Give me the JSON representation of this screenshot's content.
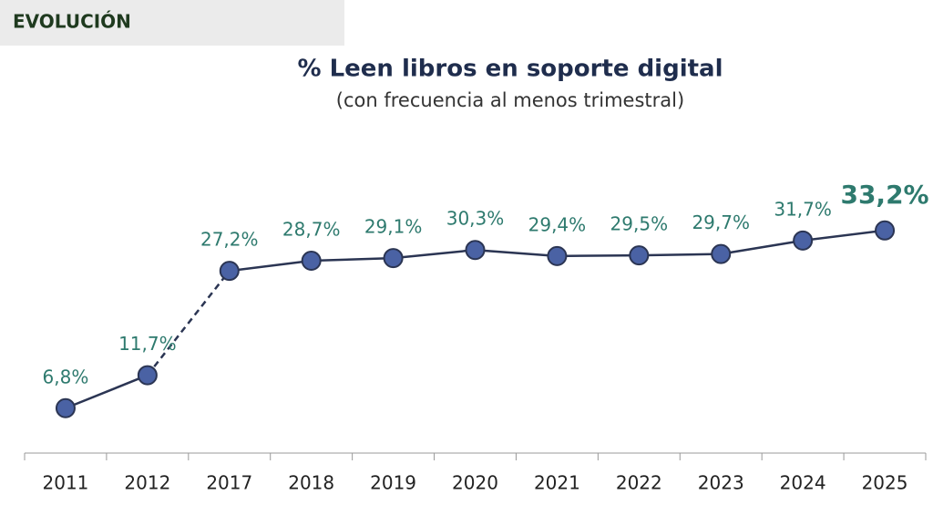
{
  "header": {
    "title": "EVOLUCIÓN"
  },
  "chart_data": {
    "type": "line",
    "title": "% Leen libros en soporte digital",
    "subtitle": "(con frecuencia al menos trimestral)",
    "categories": [
      "2011",
      "2012",
      "2017",
      "2018",
      "2019",
      "2020",
      "2021",
      "2022",
      "2023",
      "2024",
      "2025"
    ],
    "values": [
      6.8,
      11.7,
      27.2,
      28.7,
      29.1,
      30.3,
      29.4,
      29.5,
      29.7,
      31.7,
      33.2
    ],
    "value_labels": [
      "6,8%",
      "11,7%",
      "27,2%",
      "28,7%",
      "29,1%",
      "30,3%",
      "29,4%",
      "29,5%",
      "29,7%",
      "31,7%",
      "33,2%"
    ],
    "color": "#4a62a4",
    "line_color": "#2b3553",
    "label_color": "#2e7a6e",
    "dashed_between": [
      "2012",
      "2017"
    ],
    "highlight_last": true,
    "ylim": [
      0,
      35
    ]
  }
}
